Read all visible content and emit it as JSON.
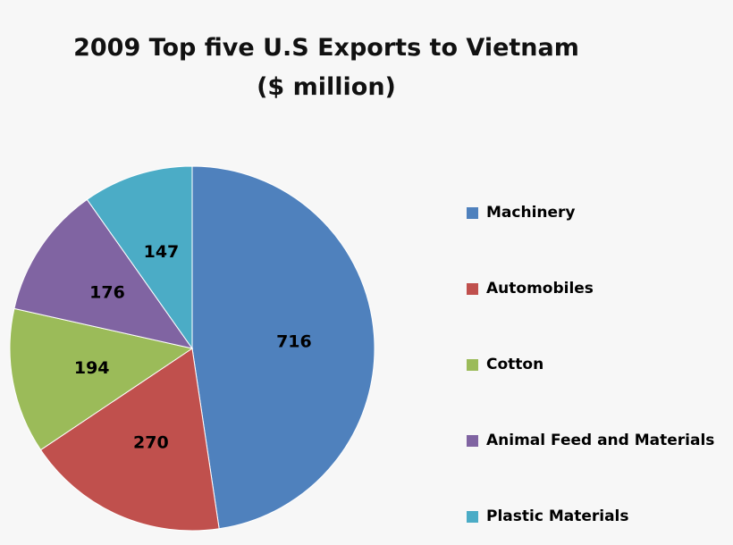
{
  "chart_data": {
    "type": "pie",
    "title": "2009 Top five U.S Exports to Vietnam",
    "subtitle": "($ million)",
    "categories": [
      "Machinery",
      "Automobiles",
      "Cotton",
      "Animal Feed and Materials",
      "Plastic Materials"
    ],
    "values": [
      716,
      270,
      194,
      176,
      147
    ],
    "colors": [
      "#4f81bd",
      "#c0504d",
      "#9bbb59",
      "#8064a2",
      "#4bacc6"
    ],
    "legend_position": "right"
  }
}
